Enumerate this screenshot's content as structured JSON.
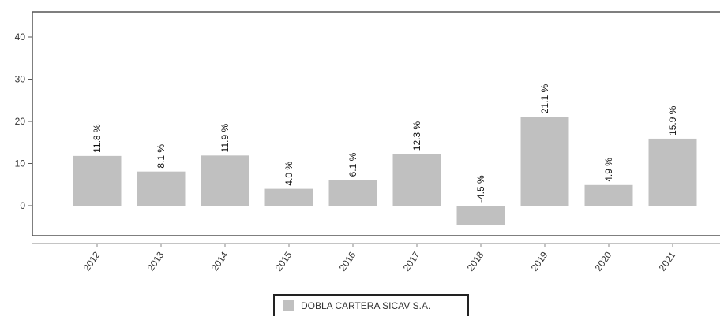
{
  "chart_data": {
    "type": "bar",
    "categories": [
      "2012",
      "2013",
      "2014",
      "2015",
      "2016",
      "2017",
      "2018",
      "2019",
      "2020",
      "2021"
    ],
    "series": [
      {
        "name": "DOBLA CARTERA SICAV S.A.",
        "values": [
          11.8,
          8.1,
          11.9,
          4.0,
          6.1,
          12.3,
          -4.5,
          21.1,
          4.9,
          15.9
        ],
        "labels": [
          "11.8 %",
          "8.1 %",
          "11.9 %",
          "4.0 %",
          "6.1 %",
          "12.3 %",
          "-4.5 %",
          "21.1 %",
          "4.9 %",
          "15.9 %"
        ]
      }
    ],
    "yticks": [
      0,
      10,
      20,
      30,
      40
    ],
    "ylim": [
      -7,
      46
    ],
    "grid": false,
    "legend_position": "bottom-center",
    "colors": {
      "bar": "#c0c0c0",
      "frame": "#555555"
    }
  }
}
